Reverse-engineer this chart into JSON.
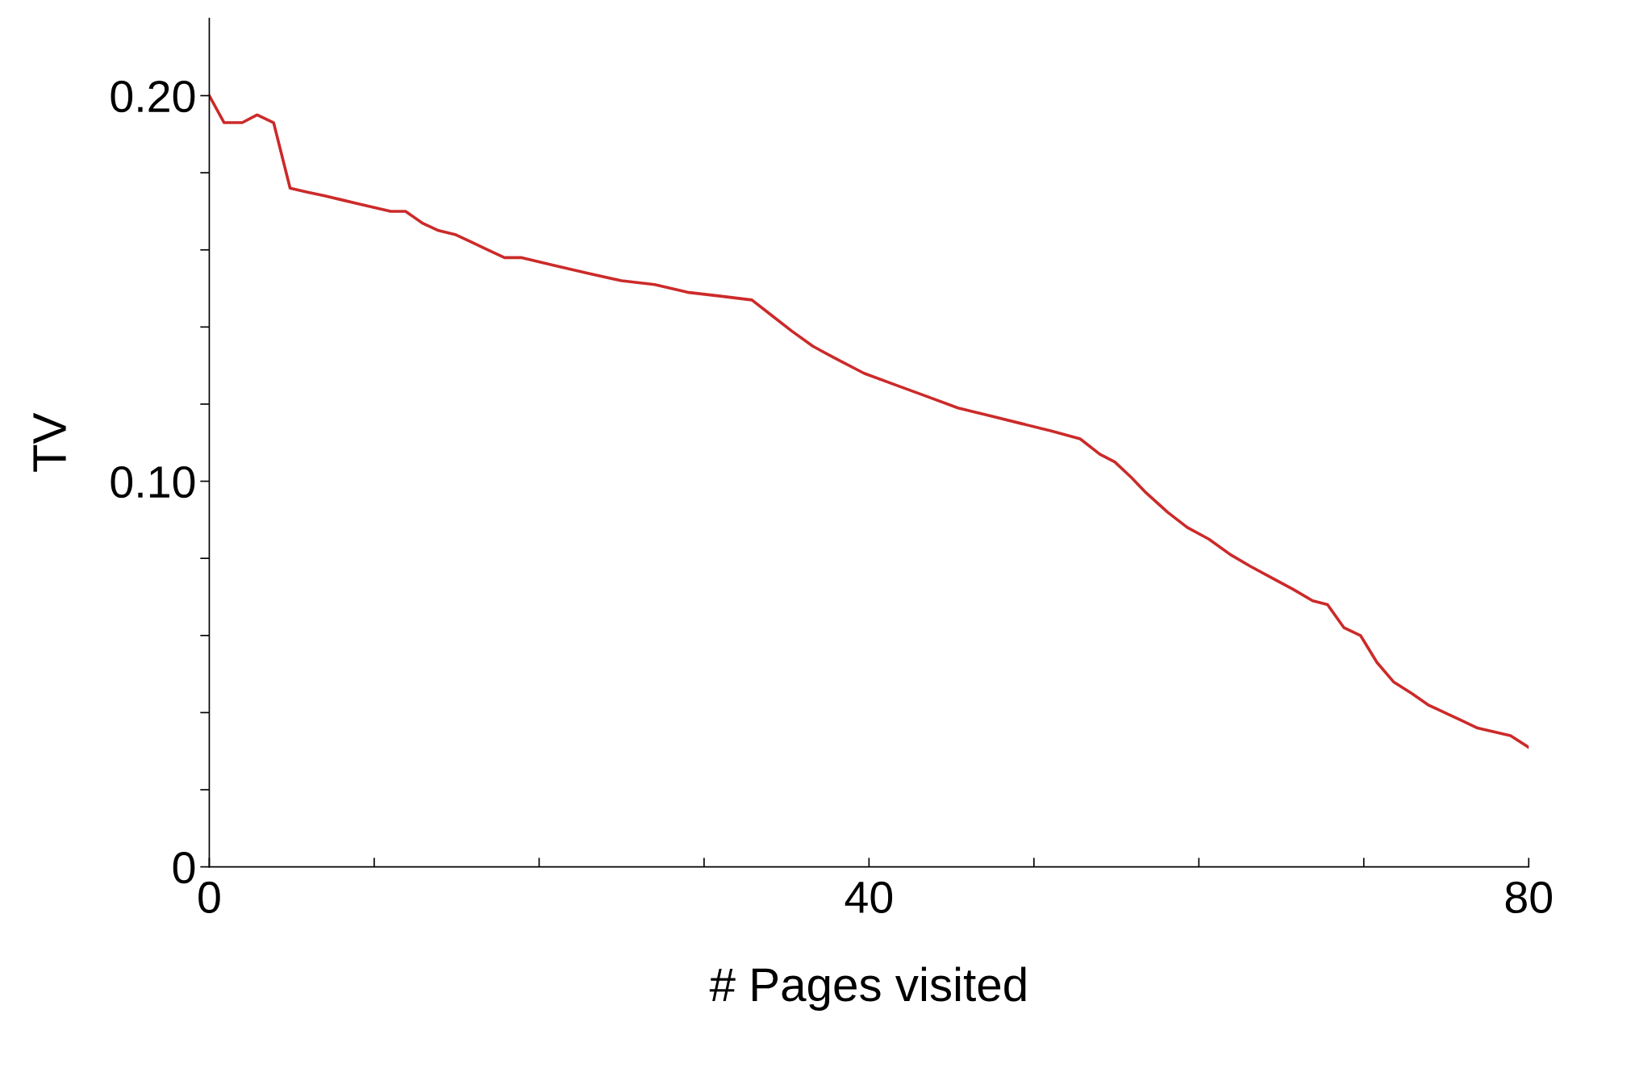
{
  "chart_data": {
    "type": "line",
    "xlabel": "# Pages visited",
    "ylabel": "TV",
    "xlim": [
      0,
      80
    ],
    "ylim": [
      0,
      0.22
    ],
    "xticks": [
      0,
      {
        "value": 10,
        "label": null
      },
      {
        "value": 20,
        "label": null
      },
      {
        "value": 30,
        "label": null
      },
      40,
      {
        "value": 50,
        "label": null
      },
      {
        "value": 60,
        "label": null
      },
      {
        "value": 70,
        "label": null
      },
      80
    ],
    "yticks": [
      0,
      {
        "value": 0.02,
        "label": null
      },
      {
        "value": 0.04,
        "label": null
      },
      {
        "value": 0.06,
        "label": null
      },
      {
        "value": 0.08,
        "label": null
      },
      {
        "value": 0.1,
        "label": "0.10"
      },
      {
        "value": 0.12,
        "label": null
      },
      {
        "value": 0.14,
        "label": null
      },
      {
        "value": 0.16,
        "label": null
      },
      {
        "value": 0.18,
        "label": null
      },
      {
        "value": 0.2,
        "label": "0.20"
      }
    ],
    "grid": false,
    "legend": false,
    "marker": "none",
    "line_style": "solid",
    "series": [
      {
        "color": "#cc2a2a",
        "x": [
          0,
          0.9,
          2.0,
          2.9,
          3.9,
          4.9,
          5.9,
          7.0,
          8.0,
          9.0,
          10.0,
          11.0,
          11.9,
          12.9,
          13.9,
          14.9,
          15.9,
          16.9,
          17.9,
          18.9,
          20.9,
          22.9,
          25.0,
          27.0,
          29.0,
          31.0,
          32.9,
          34.1,
          35.3,
          36.6,
          37.9,
          39.7,
          41.6,
          43.5,
          45.4,
          47.3,
          49.2,
          51.1,
          52.8,
          54.0,
          54.9,
          55.9,
          56.8,
          58.1,
          59.3,
          60.6,
          61.9,
          63.1,
          64.4,
          65.7,
          66.9,
          67.8,
          68.8,
          69.8,
          70.8,
          71.8,
          72.9,
          73.9,
          74.9,
          75.9,
          76.9,
          77.9,
          78.9,
          80.0
        ],
        "values": [
          0.2,
          0.193,
          0.193,
          0.195,
          0.193,
          0.176,
          0.175,
          0.174,
          0.173,
          0.172,
          0.171,
          0.17,
          0.17,
          0.167,
          0.165,
          0.164,
          0.162,
          0.16,
          0.158,
          0.158,
          0.156,
          0.154,
          0.152,
          0.151,
          0.149,
          0.148,
          0.147,
          0.143,
          0.139,
          0.135,
          0.132,
          0.128,
          0.125,
          0.122,
          0.119,
          0.117,
          0.115,
          0.113,
          0.111,
          0.107,
          0.105,
          0.101,
          0.097,
          0.092,
          0.088,
          0.085,
          0.081,
          0.078,
          0.075,
          0.072,
          0.069,
          0.068,
          0.062,
          0.06,
          0.053,
          0.048,
          0.045,
          0.042,
          0.04,
          0.038,
          0.036,
          0.035,
          0.034,
          0.031
        ]
      }
    ]
  }
}
